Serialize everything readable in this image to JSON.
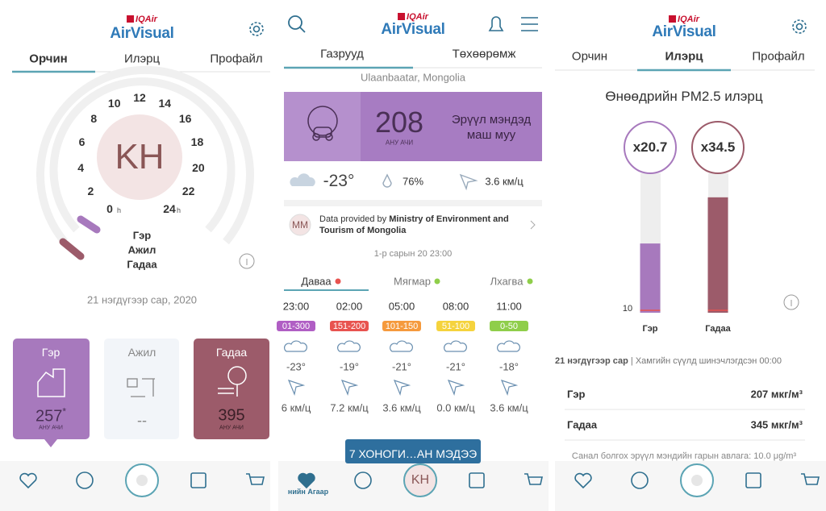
{
  "panel1": {
    "brand_small": "IQAir",
    "brand": "AirVisual",
    "tabs": [
      "Орчин",
      "Илэрц",
      "Профайл"
    ],
    "dial": {
      "hours": [
        "0",
        "2",
        "4",
        "6",
        "8",
        "10",
        "12",
        "14",
        "16",
        "18",
        "20",
        "22",
        "24"
      ],
      "unit": "h",
      "center": "KH",
      "legend": [
        "Гэр",
        "Ажил",
        "Гадаа"
      ]
    },
    "date": "21 нэгдүгээр сар, 2020",
    "cards": [
      {
        "title": "Гэр",
        "value": "257",
        "mark": "*",
        "unit": "АНУ АЧИ"
      },
      {
        "title": "Ажил",
        "value": "--"
      },
      {
        "title": "Гадаа",
        "value": "395",
        "unit": "АНУ АЧИ"
      }
    ]
  },
  "panel2": {
    "brand_small": "IQAir",
    "brand": "AirVisual",
    "tabs": [
      "Газрууд",
      "Төхөөрөмж"
    ],
    "location": "Ulaanbaatar, Mongolia",
    "aqi": {
      "value": "208",
      "unit": "АНУ АЧИ",
      "status": "Эрүүл мэндэд маш муу"
    },
    "weather": {
      "temp": "-23°",
      "humidity": "76%",
      "wind": "3.6 км/ц"
    },
    "source": {
      "badge": "MM",
      "prefix": "Data provided by ",
      "name": "Ministry of Environment and Tourism of Mongolia"
    },
    "timestamp": "1-р сарын 20 23:00",
    "days": [
      "Даваа",
      "Мягмар",
      "Лхагва"
    ],
    "hourly": [
      {
        "time": "23:00",
        "aqi": "01-300",
        "temp": "-23°",
        "wind": "6 км/ц"
      },
      {
        "time": "02:00",
        "aqi": "151-200",
        "temp": "-19°",
        "wind": "7.2 км/ц"
      },
      {
        "time": "05:00",
        "aqi": "101-150",
        "temp": "-21°",
        "wind": "3.6 км/ц"
      },
      {
        "time": "08:00",
        "aqi": "51-100",
        "temp": "-21°",
        "wind": "0.0 км/ц"
      },
      {
        "time": "11:00",
        "aqi": "0-50",
        "temp": "-18°",
        "wind": "3.6 км/ц"
      }
    ],
    "button": "7 ХОНОГИ…АН МЭДЭЭ",
    "nav_center": "KH",
    "nav_label": "нийн Агаар"
  },
  "panel3": {
    "brand_small": "IQAir",
    "brand": "AirVisual",
    "tabs": [
      "Орчин",
      "Илэрц",
      "Профайл"
    ],
    "title": "Өнөөдрийн PM2.5 илэрц",
    "comparison": {
      "baseline": "10",
      "items": [
        {
          "name": "Гэр",
          "value": 20.7,
          "label": "x20.7"
        },
        {
          "name": "Гадаа",
          "value": 34.5,
          "label": "x34.5"
        }
      ]
    },
    "footer_date": "21 нэгдүгээр сар",
    "footer_updated": " | Хамгийн сүүлд шинэчлэгдсэн 00:00",
    "rows": [
      {
        "name": "Гэр",
        "value": "207 мкг/м³"
      },
      {
        "name": "Гадаа",
        "value": "345 мкг/м³"
      }
    ],
    "note": "Санал болгох эрүүл мэндийн гарын авлага: 10.0 μg/m³"
  }
}
